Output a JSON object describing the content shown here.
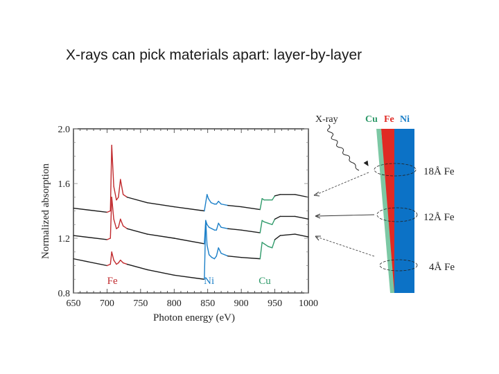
{
  "slide": {
    "title": "X-rays can pick materials apart: layer-by-layer"
  },
  "colors": {
    "fe": "#c0282c",
    "ni": "#1b7fc8",
    "cu": "#2f9a6a",
    "baseline": "#1a1a1a",
    "layer_cu": "#7cc8a4",
    "layer_fe": "#e02a24",
    "layer_ni": "#0c72c6"
  },
  "chart_data": {
    "type": "line",
    "title": "",
    "xlabel": "Photon energy (eV)",
    "ylabel": "Normalized absorption",
    "xlim": [
      650,
      1000
    ],
    "ylim": [
      0.8,
      2.0
    ],
    "xticks": [
      650,
      700,
      750,
      800,
      850,
      900,
      950,
      1000
    ],
    "yticks": [
      0.8,
      1.2,
      1.6,
      2.0
    ],
    "xtick_labels": [
      "650",
      "700",
      "750",
      "800",
      "850",
      "900",
      "950",
      "1000"
    ],
    "ytick_labels": [
      "0.8",
      "1.2",
      "1.6",
      "2.0"
    ],
    "grid": false,
    "annotations": [
      {
        "text": "Fe",
        "x": 708,
        "y": 0.84,
        "color": "#c0282c"
      },
      {
        "text": "Ni",
        "x": 852,
        "y": 0.84,
        "color": "#1b7fc8"
      },
      {
        "text": "Cu",
        "x": 935,
        "y": 0.84,
        "color": "#2f9a6a"
      }
    ],
    "edges": [
      {
        "element": "Fe",
        "L3": 707,
        "L2": 720
      },
      {
        "element": "Ni",
        "L3": 852,
        "L2": 870
      },
      {
        "element": "Cu",
        "L3": 932,
        "L2": 952
      }
    ],
    "series": [
      {
        "name": "18Å Fe",
        "x": [
          650,
          700,
          705,
          707,
          710,
          714,
          717,
          720,
          724,
          730,
          760,
          800,
          845,
          849,
          851,
          855,
          860,
          863,
          866,
          870,
          880,
          900,
          928,
          931,
          934,
          940,
          946,
          950,
          958,
          980,
          1000
        ],
        "y": [
          1.42,
          1.39,
          1.4,
          1.88,
          1.58,
          1.48,
          1.5,
          1.63,
          1.52,
          1.5,
          1.46,
          1.43,
          1.4,
          1.52,
          1.49,
          1.46,
          1.45,
          1.45,
          1.47,
          1.45,
          1.44,
          1.43,
          1.41,
          1.49,
          1.48,
          1.48,
          1.48,
          1.51,
          1.52,
          1.52,
          1.5
        ]
      },
      {
        "name": "12Å Fe",
        "x": [
          650,
          700,
          705,
          707,
          710,
          714,
          717,
          720,
          724,
          730,
          760,
          800,
          845,
          847,
          849,
          852,
          856,
          860,
          863,
          866,
          870,
          880,
          900,
          928,
          931,
          934,
          940,
          946,
          950,
          958,
          980,
          1000
        ],
        "y": [
          1.22,
          1.19,
          1.2,
          1.5,
          1.34,
          1.27,
          1.28,
          1.34,
          1.29,
          1.27,
          1.23,
          1.2,
          1.16,
          1.33,
          1.3,
          1.28,
          1.27,
          1.26,
          1.26,
          1.31,
          1.28,
          1.27,
          1.26,
          1.24,
          1.33,
          1.32,
          1.31,
          1.3,
          1.34,
          1.36,
          1.36,
          1.34
        ]
      },
      {
        "name": "4Å Fe",
        "x": [
          650,
          700,
          705,
          707,
          710,
          714,
          717,
          720,
          724,
          730,
          760,
          800,
          845,
          847,
          849,
          852,
          856,
          860,
          863,
          866,
          870,
          880,
          900,
          928,
          931,
          934,
          940,
          946,
          950,
          958,
          980,
          1000
        ],
        "y": [
          1.05,
          1.0,
          1.01,
          1.1,
          1.04,
          1.01,
          1.02,
          1.04,
          1.02,
          1.01,
          0.97,
          0.93,
          0.9,
          1.33,
          1.15,
          1.08,
          1.06,
          1.05,
          1.07,
          1.13,
          1.09,
          1.07,
          1.06,
          1.05,
          1.17,
          1.16,
          1.14,
          1.13,
          1.19,
          1.22,
          1.23,
          1.21
        ]
      }
    ]
  },
  "diagram": {
    "xray_label": "X-ray",
    "layer_labels": {
      "cu": "Cu",
      "fe": "Fe",
      "ni": "Ni"
    },
    "thickness_labels": [
      "18Å Fe",
      "12Å Fe",
      "4Å Fe"
    ]
  }
}
